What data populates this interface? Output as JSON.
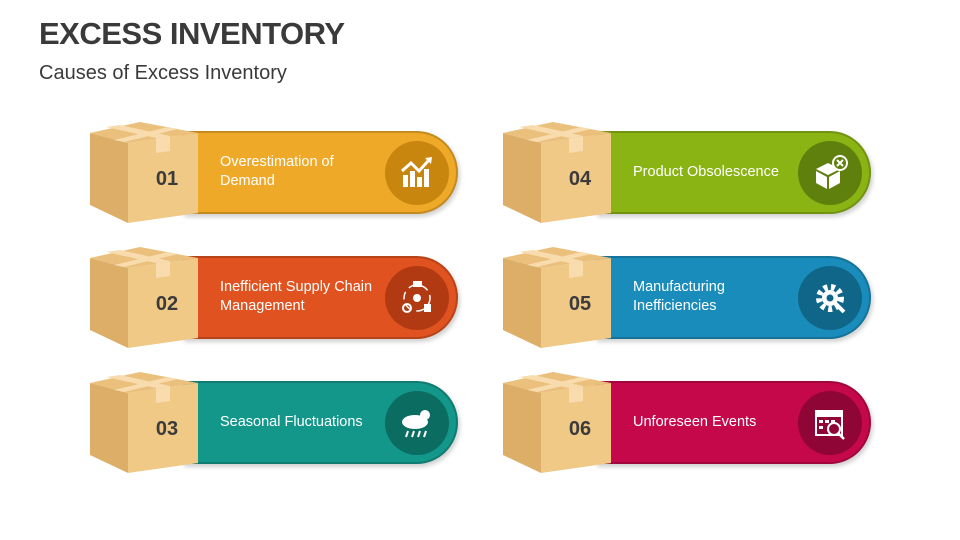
{
  "title": "EXCESS INVENTORY",
  "subtitle": "Causes of Excess Inventory",
  "items": [
    {
      "number": "01",
      "label": "Overestimation of Demand",
      "color": "#efa928",
      "circle": "#c8860f",
      "icon": "growth-chart-icon"
    },
    {
      "number": "02",
      "label": "Inefficient Supply Chain Management",
      "color": "#e0521f",
      "circle": "#b23a12",
      "icon": "supply-chain-cycle-icon"
    },
    {
      "number": "03",
      "label": "Seasonal Fluctuations",
      "color": "#13978a",
      "circle": "#0b6c62",
      "icon": "weather-sun-rain-icon"
    },
    {
      "number": "04",
      "label": "Product Obsolescence",
      "color": "#8ab414",
      "circle": "#5f800c",
      "icon": "box-cancel-icon"
    },
    {
      "number": "05",
      "label": "Manufacturing Inefficiencies",
      "color": "#1a8cbb",
      "circle": "#0f6688",
      "icon": "gear-wrench-icon"
    },
    {
      "number": "06",
      "label": "Unforeseen Events",
      "color": "#c4084a",
      "circle": "#8f0535",
      "icon": "calendar-alert-icon"
    }
  ]
}
